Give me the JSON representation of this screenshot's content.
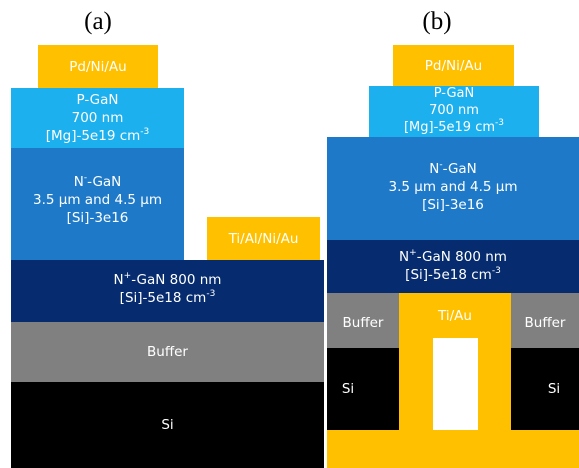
{
  "figure_a": {
    "label": "(a)",
    "contact_top": "Pd/Ni/Au",
    "pgan": {
      "name": "P-GaN",
      "thickness": "700 nm",
      "doping_prefix": "[Mg]-5e19 cm",
      "doping_exp": "-3"
    },
    "ngan": {
      "name_pre": "N",
      "name_sup": "-",
      "name_post": "-GaN",
      "thickness": "3.5 µm and 4.5 µm",
      "doping": "[Si]-3e16"
    },
    "contact_side": "Ti/Al/Ni/Au",
    "nplus": {
      "name_pre": "N",
      "name_sup": "+",
      "name_post": "-GaN 800 nm",
      "doping_prefix": "[Si]-5e18 cm",
      "doping_exp": "-3"
    },
    "buffer": "Buffer",
    "substrate": "Si"
  },
  "figure_b": {
    "label": "(b)",
    "contact_top": "Pd/Ni/Au",
    "pgan": {
      "name": "P-GaN",
      "thickness": "700 nm",
      "doping_prefix": "[Mg]-5e19 cm",
      "doping_exp": "-3"
    },
    "ngan": {
      "name_pre": "N",
      "name_sup": "-",
      "name_post": "-GaN",
      "thickness": "3.5 µm and 4.5 µm",
      "doping": "[Si]-3e16"
    },
    "nplus": {
      "name_pre": "N",
      "name_sup": "+",
      "name_post": "-GaN 800 nm",
      "doping_prefix": "[Si]-5e18 cm",
      "doping_exp": "-3"
    },
    "buffer_left": "Buffer",
    "buffer_right": "Buffer",
    "backside_contact": "Ti/Au",
    "substrate_left": "Si",
    "substrate_right": "Si"
  },
  "colors": {
    "contact": "#FFC000",
    "pgan": "#1CB0EE",
    "ngan": "#1E7AC8",
    "nplus": "#062C6F",
    "buffer": "#808080",
    "substrate": "#000000"
  }
}
